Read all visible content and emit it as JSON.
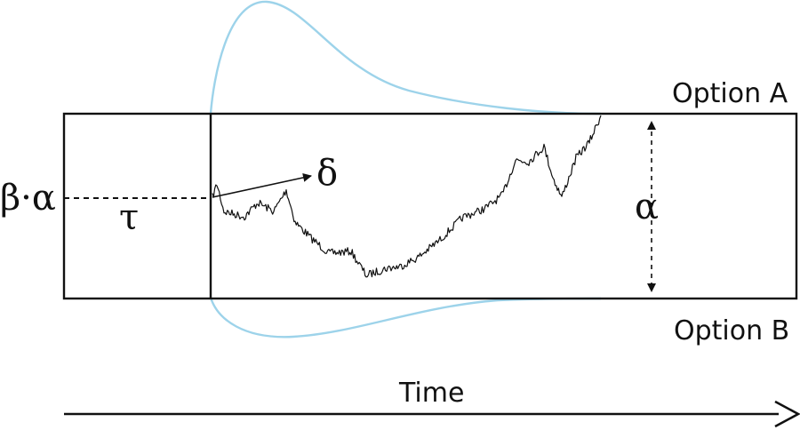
{
  "labels": {
    "upper_boundary": "Option A",
    "lower_boundary": "Option B",
    "starting_point": "β·α",
    "non_decision_time": "τ",
    "drift_rate": "δ",
    "boundary_separation": "α",
    "time_axis": "Time"
  },
  "colors": {
    "density": "#9dd3ea",
    "ink": "#111111"
  }
}
